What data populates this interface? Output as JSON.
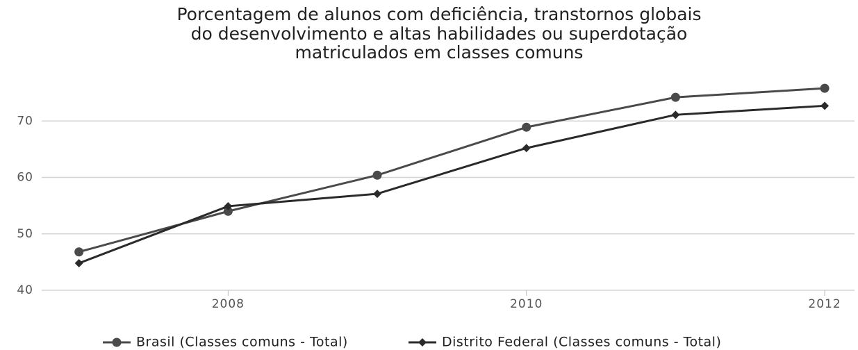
{
  "chart_data": {
    "type": "line",
    "title": [
      "Porcentagem de alunos com deficiência, transtornos globais",
      "do desenvolvimento e altas habilidades ou superdotação",
      "matriculados em classes comuns"
    ],
    "x": [
      2007,
      2008,
      2009,
      2010,
      2011,
      2012
    ],
    "xlim": [
      2006.75,
      2012.2
    ],
    "xticks": [
      2008,
      2010,
      2012
    ],
    "ylim": [
      40,
      80
    ],
    "yticks": [
      40,
      50,
      60,
      70
    ],
    "grid": true,
    "legend": "bottom",
    "series": [
      {
        "name": "Brasil (Classes comuns - Total)",
        "color": "#4a4a4a",
        "marker": "circle",
        "values": [
          46.8,
          54.0,
          60.4,
          68.9,
          74.2,
          75.8
        ]
      },
      {
        "name": "Distrito Federal (Classes comuns - Total)",
        "color": "#2a2a2a",
        "marker": "diamond",
        "values": [
          44.8,
          54.9,
          57.1,
          65.2,
          71.1,
          72.7
        ]
      }
    ]
  }
}
